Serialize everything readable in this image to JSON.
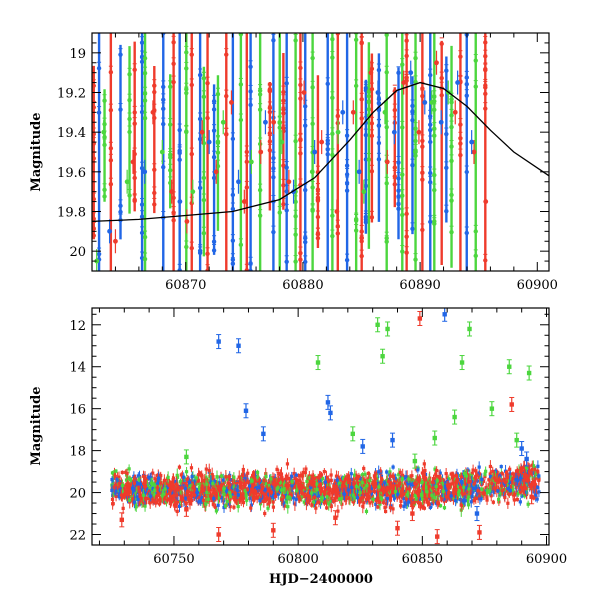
{
  "chart_data": [
    {
      "id": "top-panel",
      "type": "scatter",
      "title": "",
      "xlabel": "",
      "ylabel": "Magnitude",
      "xlim": [
        60862,
        60901
      ],
      "ylim": [
        20.1,
        18.9
      ],
      "y_inverted": true,
      "x_ticks": [
        60870,
        60880,
        60890,
        60900
      ],
      "x_tick_labels": [
        "60870",
        "60880",
        "60890",
        "60900"
      ],
      "y_ticks": [
        19,
        19.2,
        19.4,
        19.6,
        19.8,
        20
      ],
      "y_tick_labels": [
        "19",
        "19.2",
        "19.4",
        "19.6",
        "19.8",
        "20"
      ],
      "grid": false,
      "model_curve": {
        "color": "#000000",
        "x": [
          60862,
          60866,
          60870,
          60874,
          60878,
          60881,
          60884,
          60886,
          60888,
          60890,
          60892,
          60894,
          60896,
          60898,
          60901
        ],
        "y": [
          19.85,
          19.84,
          19.82,
          19.8,
          19.74,
          19.63,
          19.44,
          19.3,
          19.19,
          19.15,
          19.18,
          19.27,
          19.39,
          19.5,
          19.62
        ]
      },
      "series": [
        {
          "color": "#ef3b2c",
          "x": [
            60864.0,
            60865.5,
            60867.2,
            60868.8,
            60870.1,
            60871.4,
            60872.6,
            60873.9,
            60875.0,
            60876.4,
            60877.5,
            60878.8,
            60880.1,
            60881.6,
            60882.9,
            60884.3,
            60885.8,
            60887.2,
            60888.6,
            60889.9,
            60891.4,
            60893.0,
            60894.6,
            60895.6
          ],
          "y": [
            19.95,
            19.55,
            19.3,
            19.7,
            19.85,
            19.4,
            19.6,
            19.25,
            19.75,
            19.5,
            19.35,
            19.65,
            19.2,
            19.45,
            19.8,
            19.3,
            19.1,
            19.55,
            19.15,
            19.4,
            19.05,
            19.3,
            19.5,
            19.75
          ]
        },
        {
          "color": "#2166e6",
          "x": [
            60863.5,
            60866.5,
            60869.5,
            60872.0,
            60874.5,
            60876.8,
            60879.2,
            60881.0,
            60883.4,
            60884.8,
            60886.4,
            60887.8,
            60889.2,
            60890.4,
            60891.8,
            60893.2,
            60894.4
          ],
          "y": [
            19.9,
            19.6,
            19.75,
            19.45,
            19.65,
            19.35,
            19.7,
            19.5,
            19.3,
            19.6,
            19.2,
            19.4,
            19.1,
            19.25,
            19.35,
            19.15,
            19.45
          ]
        },
        {
          "color": "#4cd63e",
          "x": [
            60862.4,
            60863.0,
            60865.0,
            60868.0,
            60870.6,
            60873.2,
            60875.6,
            60878.2,
            60880.8,
            60883.0,
            60885.2,
            60887.0,
            60889.6,
            60891.0,
            60892.4
          ],
          "y": [
            20.05,
            19.4,
            19.65,
            19.5,
            19.7,
            19.35,
            19.55,
            19.45,
            19.6,
            19.4,
            19.7,
            19.3,
            19.5,
            19.25,
            19.2
          ]
        }
      ]
    },
    {
      "id": "bottom-panel",
      "type": "scatter",
      "title": "",
      "xlabel": "HJD−2400000",
      "ylabel": "Magnitude",
      "xlim": [
        60717,
        60901
      ],
      "ylim": [
        22.5,
        11.2
      ],
      "y_inverted": true,
      "x_ticks": [
        60750,
        60800,
        60850,
        60900
      ],
      "x_tick_labels": [
        "60750",
        "60800",
        "60850",
        "60900"
      ],
      "y_ticks": [
        12,
        14,
        16,
        18,
        20,
        22
      ],
      "y_tick_labels": [
        "12",
        "14",
        "16",
        "18",
        "20",
        "22"
      ],
      "grid": false,
      "band": {
        "x_start": 60725,
        "x_end": 60897,
        "y_center": 19.85,
        "y_spread": 1.1
      },
      "series": [
        {
          "color": "#2166e6",
          "x": [
            60768,
            60776,
            60779,
            60786,
            60812,
            60813,
            60826,
            60838,
            60859,
            60872,
            60890,
            60892
          ],
          "y": [
            12.8,
            13.0,
            16.1,
            17.2,
            15.7,
            16.2,
            17.8,
            17.5,
            11.5,
            21.0,
            17.9,
            18.4
          ]
        },
        {
          "color": "#4cd63e",
          "x": [
            60755,
            60808,
            60822,
            60832,
            60834,
            60836,
            60847,
            60855,
            60863,
            60866,
            60869,
            60878,
            60885,
            60888,
            60893
          ],
          "y": [
            18.3,
            13.8,
            17.2,
            12.0,
            13.5,
            12.2,
            18.5,
            17.4,
            16.4,
            13.8,
            12.2,
            16.0,
            14.0,
            17.5,
            14.3
          ]
        },
        {
          "color": "#ef3b2c",
          "x": [
            60729,
            60755,
            60768,
            60790,
            60815,
            60840,
            60846,
            60849,
            60856,
            60873,
            60886,
            60894
          ],
          "y": [
            21.3,
            20.8,
            22.0,
            21.8,
            21.2,
            21.7,
            21.0,
            11.7,
            22.1,
            21.9,
            15.8,
            20.2
          ]
        }
      ]
    }
  ]
}
